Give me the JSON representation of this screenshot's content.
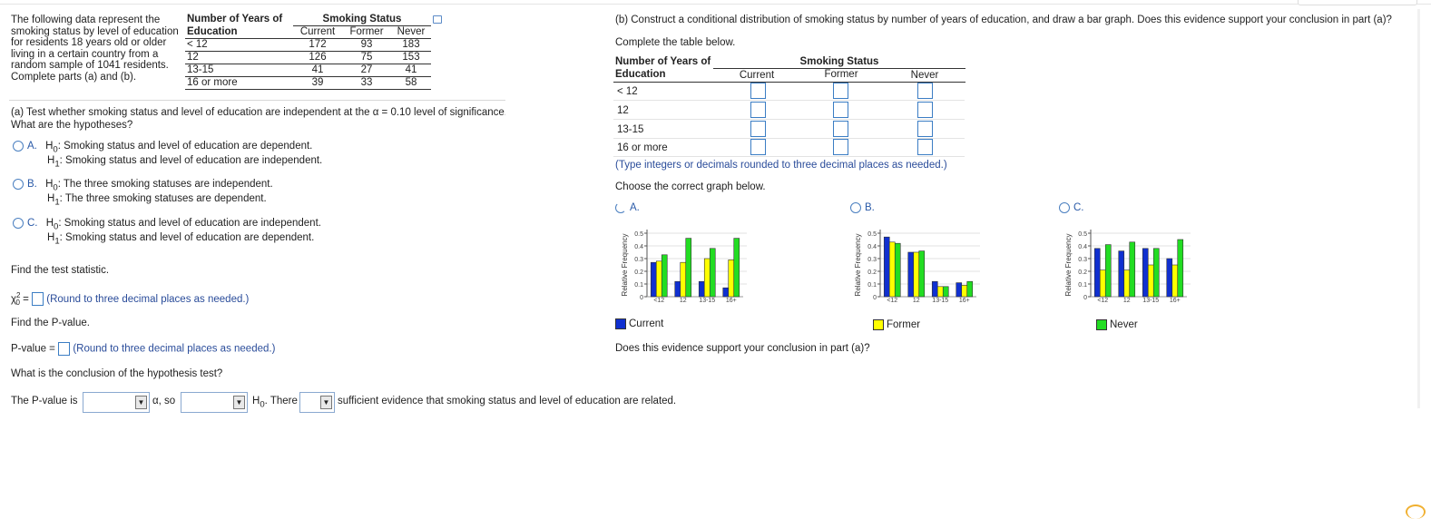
{
  "intro_text": "The following data represent the smoking status by level of education for residents 18 years old or older living in a certain country from a random sample of 1041 residents. Complete parts (a) and (b).",
  "data_table": {
    "row_header_top": "Number of Years of",
    "row_header_bottom": "Education",
    "group_header": "Smoking Status",
    "columns": [
      "Current",
      "Former",
      "Never"
    ],
    "rows": [
      {
        "label": "< 12",
        "values": [
          "172",
          "93",
          "183"
        ]
      },
      {
        "label": "12",
        "values": [
          "126",
          "75",
          "153"
        ]
      },
      {
        "label": "13-15",
        "values": [
          "41",
          "27",
          "41"
        ]
      },
      {
        "label": "16 or more",
        "values": [
          "39",
          "33",
          "58"
        ]
      }
    ]
  },
  "part_a": {
    "prompt": "(a) Test whether smoking status and level of education are independent at the α = 0.10 level of significance.",
    "hyp_question": "What are the hypotheses?",
    "options": [
      {
        "letter": "A.",
        "h0": "Smoking status and level of education are dependent.",
        "h1": "Smoking status and level of education are independent."
      },
      {
        "letter": "B.",
        "h0": "The three smoking statuses are independent.",
        "h1": "The three smoking statuses are dependent."
      },
      {
        "letter": "C.",
        "h0": "Smoking status and level of education are independent.",
        "h1": "Smoking status and level of education are dependent."
      }
    ],
    "h0_label": "H",
    "h0_sub": "0",
    "h1_label": "H",
    "h1_sub": "1",
    "find_stat": "Find the test statistic.",
    "chi_label": "χ",
    "chi_sup": "2",
    "chi_sub": "0",
    "chi_eq": " =",
    "round_hint": "(Round to three decimal places as needed.)",
    "find_p": "Find the P-value.",
    "pvalue_label": "P-value =",
    "conclusion_q": "What is the conclusion of the hypothesis test?",
    "concl_1": "The P-value is",
    "concl_2": "α, so",
    "concl_3_h": "H",
    "concl_3_sub": "0",
    "concl_3_tail": ". There",
    "concl_4": "sufficient evidence that smoking status and level of education are related."
  },
  "part_b": {
    "prompt": "(b) Construct a conditional distribution of smoking status by number of years of education, and draw a bar graph. Does this evidence support your conclusion in part (a)?",
    "complete_table": "Complete the table below.",
    "row_header_top": "Number of Years of",
    "row_header_bottom": "Education",
    "group_header": "Smoking Status",
    "columns": [
      "Current",
      "Former",
      "Never"
    ],
    "rows": [
      "< 12",
      "12",
      "13-15",
      "16 or more"
    ],
    "type_hint": "(Type integers or decimals rounded to three decimal places as needed.)",
    "choose_graph": "Choose the correct graph below.",
    "graph_options": [
      "A.",
      "B.",
      "C."
    ],
    "legend": [
      "Current",
      "Former",
      "Never"
    ],
    "support_q": "Does this evidence support your conclusion in part (a)?"
  },
  "colors": {
    "current": "#1030d0",
    "former": "#ffff00",
    "never": "#22dd22",
    "link": "#2a4c9a"
  },
  "chart_data": [
    {
      "type": "bar",
      "ylabel": "Relative Frequency",
      "categories": [
        "<12",
        "12",
        "13-15",
        "16+"
      ],
      "yticks": [
        "0",
        "0.1",
        "0.2",
        "0.3",
        "0.4",
        "0.5"
      ],
      "ylim": [
        0,
        0.5
      ],
      "series": [
        {
          "name": "Current",
          "values": [
            0.27,
            0.12,
            0.12,
            0.07
          ]
        },
        {
          "name": "Former",
          "values": [
            0.28,
            0.27,
            0.3,
            0.29
          ]
        },
        {
          "name": "Never",
          "values": [
            0.33,
            0.46,
            0.38,
            0.46
          ]
        }
      ]
    },
    {
      "type": "bar",
      "ylabel": "Relative Frequency",
      "categories": [
        "<12",
        "12",
        "13-15",
        "16+"
      ],
      "yticks": [
        "0",
        "0.1",
        "0.2",
        "0.3",
        "0.4",
        "0.5"
      ],
      "ylim": [
        0,
        0.5
      ],
      "series": [
        {
          "name": "Current",
          "values": [
            0.47,
            0.35,
            0.12,
            0.11
          ]
        },
        {
          "name": "Former",
          "values": [
            0.43,
            0.35,
            0.08,
            0.09
          ]
        },
        {
          "name": "Never",
          "values": [
            0.42,
            0.36,
            0.08,
            0.12
          ]
        }
      ]
    },
    {
      "type": "bar",
      "ylabel": "Relative Frequency",
      "categories": [
        "<12",
        "12",
        "13-15",
        "16+"
      ],
      "yticks": [
        "0",
        "0.1",
        "0.2",
        "0.3",
        "0.4",
        "0.5"
      ],
      "ylim": [
        0,
        0.5
      ],
      "series": [
        {
          "name": "Current",
          "values": [
            0.38,
            0.36,
            0.38,
            0.3
          ]
        },
        {
          "name": "Former",
          "values": [
            0.21,
            0.21,
            0.25,
            0.25
          ]
        },
        {
          "name": "Never",
          "values": [
            0.41,
            0.43,
            0.38,
            0.45
          ]
        }
      ]
    }
  ]
}
